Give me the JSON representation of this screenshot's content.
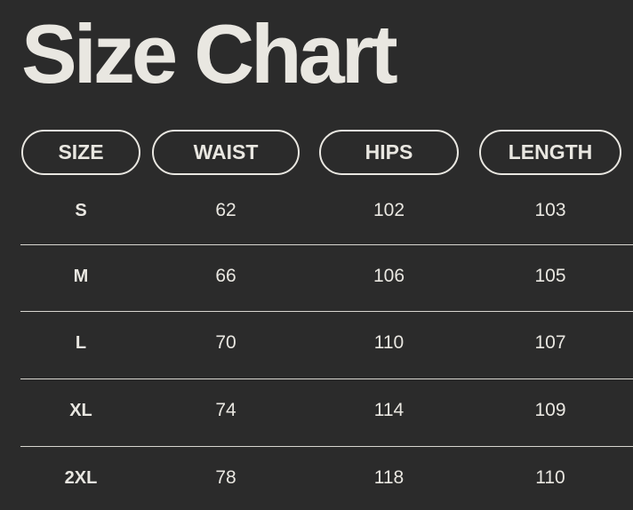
{
  "title": "Size Chart",
  "headers": [
    "SIZE",
    "WAIST",
    "HIPS",
    "LENGTH"
  ],
  "rows": [
    [
      "S",
      "62",
      "102",
      "103"
    ],
    [
      "M",
      "66",
      "106",
      "105"
    ],
    [
      "L",
      "70",
      "110",
      "107"
    ],
    [
      "XL",
      "74",
      "114",
      "109"
    ],
    [
      "2XL",
      "78",
      "118",
      "110"
    ]
  ],
  "colors": {
    "background": "#2b2b2b",
    "text": "#e9e7e1"
  }
}
